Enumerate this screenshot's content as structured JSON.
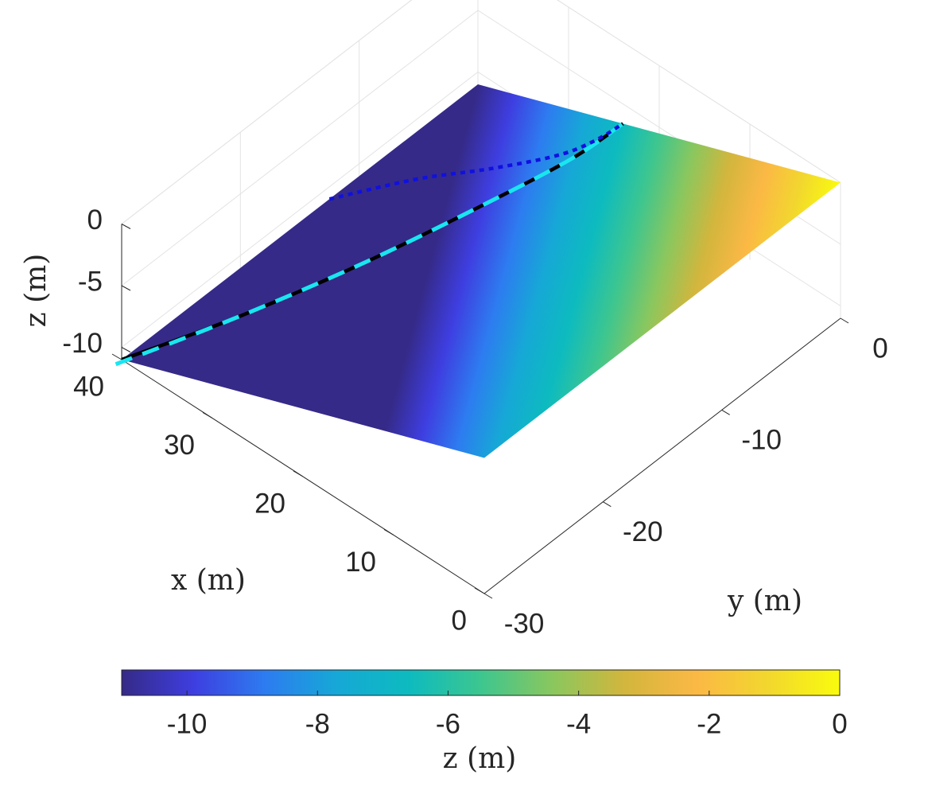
{
  "chart_data": {
    "type": "surface",
    "title": "",
    "xlabel": "x (m)",
    "ylabel": "y (m)",
    "zlabel": "z (m)",
    "xlim": [
      0,
      40
    ],
    "ylim": [
      -30,
      0
    ],
    "zlim": [
      -11,
      0
    ],
    "xticks": [
      "0",
      "10",
      "20",
      "30",
      "40"
    ],
    "yticks": [
      "-30",
      "-20",
      "-10",
      "0"
    ],
    "zticks": [
      "-10",
      "-5",
      "0"
    ],
    "surface": {
      "description_equation": "z = -x * 11/40",
      "z_at_x0": 0,
      "z_at_x40": -11
    },
    "series": [
      {
        "style": "solid-black",
        "points": [
          [
            40,
            -30
          ],
          [
            35,
            -24
          ],
          [
            30.5,
            -17
          ],
          [
            27,
            -10
          ],
          [
            24.5,
            -4
          ],
          [
            24,
            0
          ]
        ]
      },
      {
        "style": "dashed-cyan",
        "points": [
          [
            40,
            -30.5
          ],
          [
            35,
            -24
          ],
          [
            30.5,
            -17
          ],
          [
            27,
            -10
          ],
          [
            24.5,
            -4
          ],
          [
            24,
            0
          ]
        ]
      },
      {
        "style": "dotted-blue",
        "points": [
          [
            40,
            -12.5
          ],
          [
            35,
            -9
          ],
          [
            30,
            -6.5
          ],
          [
            26,
            -4
          ],
          [
            24.5,
            -2
          ],
          [
            24,
            0
          ]
        ]
      }
    ],
    "colorbar": {
      "label": "z (m)",
      "range": [
        -11,
        0
      ],
      "ticks": [
        "-10",
        "-8",
        "-6",
        "-4",
        "-2",
        "0"
      ],
      "colormap": [
        "#352a87",
        "#3e3ee0",
        "#2d7cf0",
        "#16a8d6",
        "#0dbbbf",
        "#3dc68f",
        "#8ac75e",
        "#d2b63d",
        "#fbb845",
        "#f2d72e",
        "#f9fb0e"
      ]
    },
    "grid": true
  }
}
